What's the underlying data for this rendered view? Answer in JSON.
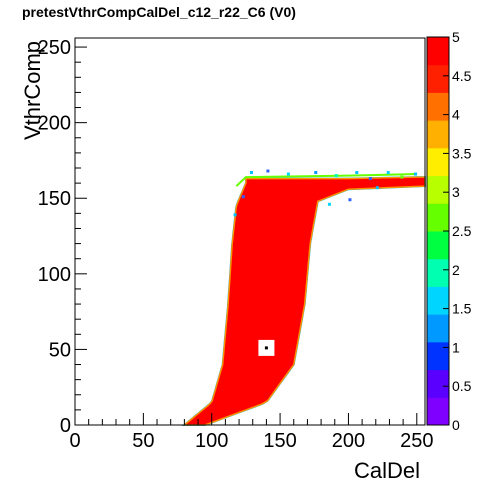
{
  "title": "pretestVthrCompCalDel_c12_r22_C6 (V0)",
  "chart_data": {
    "type": "heatmap",
    "title": "pretestVthrCompCalDel_c12_r22_C6 (V0)",
    "xlabel": "CalDel",
    "ylabel": "VthrComp",
    "xlim": [
      0,
      256
    ],
    "ylim": [
      0,
      256
    ],
    "zlim": [
      0,
      5
    ],
    "x_ticks": [
      "0",
      "50",
      "100",
      "150",
      "200",
      "250"
    ],
    "y_ticks": [
      "0",
      "50",
      "100",
      "150",
      "200",
      "250"
    ],
    "colorbar_ticks": [
      "0",
      "0.5",
      "1",
      "1.5",
      "2",
      "2.5",
      "3",
      "3.5",
      "4",
      "4.5",
      "5"
    ],
    "colorbar_colors": [
      "#8000ff",
      "#5a00ff",
      "#0033ff",
      "#0099ff",
      "#00d5ff",
      "#00ffb0",
      "#00ff40",
      "#66ff00",
      "#b8ff00",
      "#ffee00",
      "#ffb000",
      "#ff7000",
      "#ff2000",
      "#ff0000"
    ],
    "description_bands": {
      "body": "red band (value 5) between left and right S-shaped edges",
      "left_edge": [
        [
          80,
          0
        ],
        [
          100,
          15
        ],
        [
          108,
          40
        ],
        [
          112,
          80
        ],
        [
          115,
          120
        ],
        [
          118,
          145
        ],
        [
          125,
          160
        ]
      ],
      "right_edge": [
        [
          95,
          0
        ],
        [
          140,
          15
        ],
        [
          160,
          40
        ],
        [
          168,
          80
        ],
        [
          172,
          120
        ],
        [
          178,
          150
        ],
        [
          200,
          160
        ],
        [
          245,
          162
        ]
      ],
      "plateau_y": 160,
      "hole": {
        "x": 140,
        "y": 51,
        "value": 0
      }
    }
  }
}
